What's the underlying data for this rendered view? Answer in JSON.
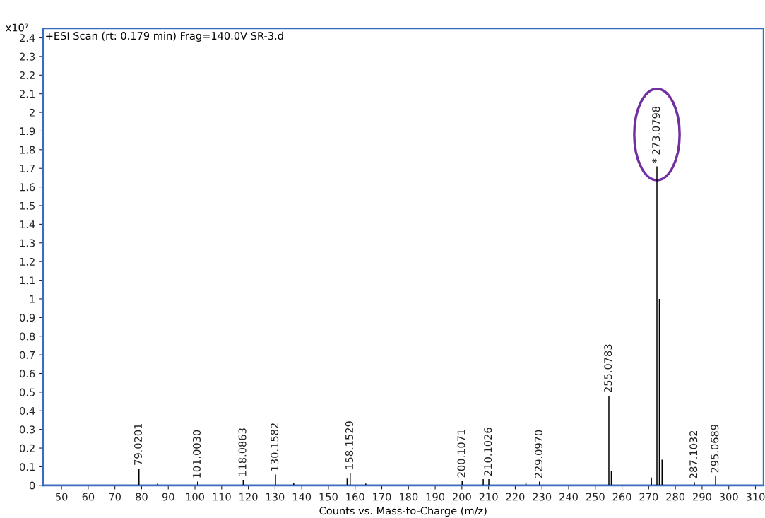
{
  "chart_data": {
    "type": "bar",
    "title": "+ESI Scan (rt: 0.179 min) Frag=140.0V SR-3.d",
    "xlabel": "Counts vs. Mass-to-Charge (m/z)",
    "ylabel": "x10⁷",
    "x": [
      79.0201,
      86,
      101.003,
      118.0863,
      130.1582,
      137,
      157,
      158.1529,
      164,
      200.1071,
      208,
      210.1026,
      224,
      229.097,
      255.0783,
      256,
      271,
      273.0798,
      274,
      275,
      287.1032,
      295.0689
    ],
    "values": [
      0.09,
      0.01,
      0.02,
      0.03,
      0.058,
      0.012,
      0.036,
      0.068,
      0.01,
      0.024,
      0.033,
      0.033,
      0.015,
      0.02,
      0.48,
      0.076,
      0.042,
      1.71,
      1.0,
      0.138,
      0.017,
      0.05
    ],
    "annotations": [
      {
        "text": "79.0201",
        "x": 79.0201,
        "y": 0.09
      },
      {
        "text": "101.0030",
        "x": 101.003,
        "y": 0.02
      },
      {
        "text": "118.0863",
        "x": 118.0863,
        "y": 0.03
      },
      {
        "text": "130.1582",
        "x": 130.1582,
        "y": 0.058
      },
      {
        "text": "158.1529",
        "x": 158.1529,
        "y": 0.068
      },
      {
        "text": "200.1071",
        "x": 200.1071,
        "y": 0.024
      },
      {
        "text": "210.1026",
        "x": 210.1026,
        "y": 0.033
      },
      {
        "text": "229.0970",
        "x": 229.097,
        "y": 0.02
      },
      {
        "text": "255.0783",
        "x": 255.0783,
        "y": 0.48
      },
      {
        "text": "* 273.0798",
        "x": 273.0798,
        "y": 1.71
      },
      {
        "text": "287.1032",
        "x": 287.1032,
        "y": 0.017
      },
      {
        "text": "295.0689",
        "x": 295.0689,
        "y": 0.05
      }
    ],
    "color": "#000000",
    "xlim": [
      43,
      313
    ],
    "xticks": [
      50,
      60,
      70,
      80,
      90,
      100,
      110,
      120,
      130,
      140,
      150,
      160,
      170,
      180,
      190,
      200,
      210,
      220,
      230,
      240,
      250,
      260,
      270,
      280,
      290,
      300,
      310
    ],
    "ylim": [
      0,
      2.45
    ],
    "yticks": [
      0,
      0.1,
      0.2,
      0.3,
      0.4,
      0.5,
      0.6,
      0.7,
      0.8,
      0.9,
      1,
      1.1,
      1.2,
      1.3,
      1.4,
      1.5,
      1.6,
      1.7,
      1.8,
      1.9,
      2,
      2.1,
      2.2,
      2.3,
      2.4
    ],
    "grid": false,
    "legend": false
  }
}
